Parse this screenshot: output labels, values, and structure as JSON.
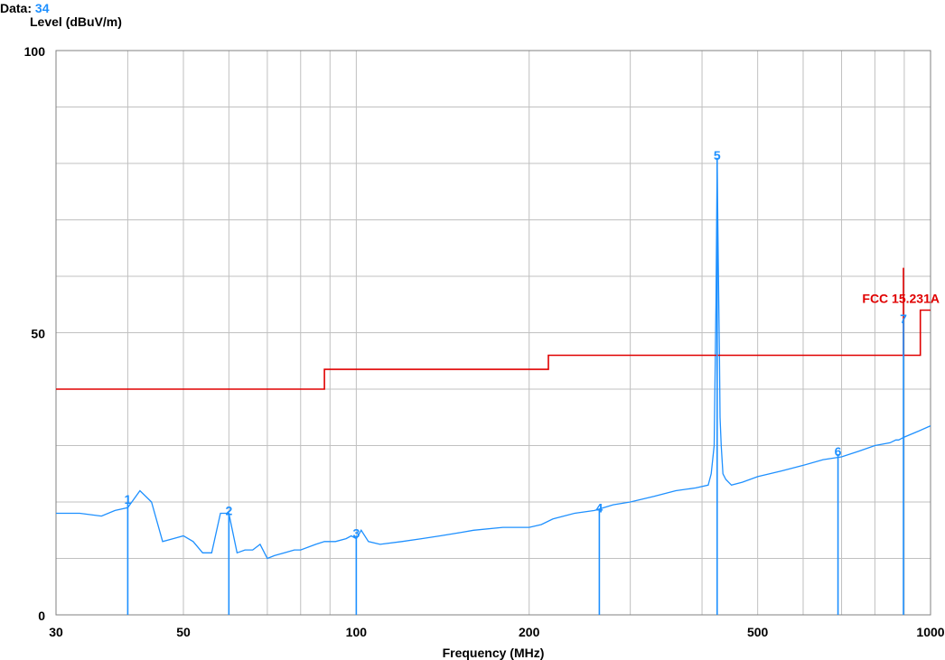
{
  "header": {
    "data_label": "Data:",
    "data_value": "34",
    "data_value_color": "#1e90ff"
  },
  "chart_data": {
    "type": "line",
    "title": "",
    "xlabel": "Frequency (MHz)",
    "ylabel": "Level (dBuV/m)",
    "x_scale": "log",
    "xlim": [
      30,
      1000
    ],
    "ylim": [
      0,
      100
    ],
    "grid": true,
    "x_tick_labels": [
      {
        "value": 30,
        "label": "30"
      },
      {
        "value": 50,
        "label": "50"
      },
      {
        "value": 100,
        "label": "100"
      },
      {
        "value": 200,
        "label": "200"
      },
      {
        "value": 500,
        "label": "500"
      },
      {
        "value": 1000,
        "label": "1000"
      }
    ],
    "y_tick_labels": [
      {
        "value": 0,
        "label": "0"
      },
      {
        "value": 50,
        "label": "50"
      },
      {
        "value": 100,
        "label": "100"
      }
    ],
    "colors": {
      "trace": "#1e90ff",
      "limit": "#e00000",
      "grid": "#c0c0c0"
    },
    "series": [
      {
        "kind": "trace",
        "x": [
          30,
          33,
          36,
          38,
          40,
          42,
          44,
          46,
          48,
          50,
          52,
          54,
          56,
          58,
          60,
          62,
          64,
          66,
          68,
          70,
          72,
          75,
          78,
          80,
          85,
          88,
          92,
          96,
          98,
          100,
          102,
          105,
          110,
          120,
          130,
          140,
          150,
          160,
          180,
          200,
          210,
          220,
          240,
          260,
          280,
          300,
          330,
          360,
          390,
          410,
          415,
          420,
          423,
          425,
          427,
          429,
          430,
          432,
          435,
          440,
          450,
          470,
          500,
          550,
          600,
          650,
          700,
          750,
          800,
          850,
          870,
          880,
          900,
          950,
          1000
        ],
        "y": [
          18,
          18,
          17.5,
          18.5,
          19,
          22,
          20,
          13,
          13.5,
          14,
          13,
          11,
          11,
          18,
          18,
          11,
          11.5,
          11.5,
          12.5,
          10,
          10.5,
          11,
          11.5,
          11.5,
          12.5,
          13,
          13,
          13.5,
          14,
          13.5,
          15,
          13,
          12.5,
          13,
          13.5,
          14,
          14.5,
          15,
          15.5,
          15.5,
          16,
          17,
          18,
          18.5,
          19.5,
          20,
          21,
          22,
          22.5,
          23,
          25,
          30,
          55,
          80,
          62,
          45,
          35,
          30,
          25,
          24,
          23,
          23.5,
          24.5,
          25.5,
          26.5,
          27.5,
          28,
          29,
          30,
          30.5,
          31,
          31,
          31.5,
          32.5,
          33.5
        ]
      },
      {
        "kind": "limit",
        "x": [
          30,
          88,
          88,
          216,
          216,
          960,
          960,
          1000
        ],
        "y": [
          40,
          40,
          43.5,
          43.5,
          46,
          46,
          54,
          54
        ]
      },
      {
        "kind": "limit-marker",
        "x": [
          897,
          897
        ],
        "y": [
          46,
          61.5
        ]
      }
    ],
    "markers": [
      {
        "label": "1",
        "x": 40,
        "y": 20
      },
      {
        "label": "2",
        "x": 60,
        "y": 18
      },
      {
        "label": "3",
        "x": 100,
        "y": 14
      },
      {
        "label": "4",
        "x": 265,
        "y": 18.5
      },
      {
        "label": "5",
        "x": 425,
        "y": 81
      },
      {
        "label": "6",
        "x": 690,
        "y": 28.5
      },
      {
        "label": "7",
        "x": 897,
        "y": 52
      }
    ],
    "annotations": [
      {
        "text": "FCC 15.231A",
        "x": 897,
        "y": 54,
        "color": "#e00000"
      }
    ]
  }
}
